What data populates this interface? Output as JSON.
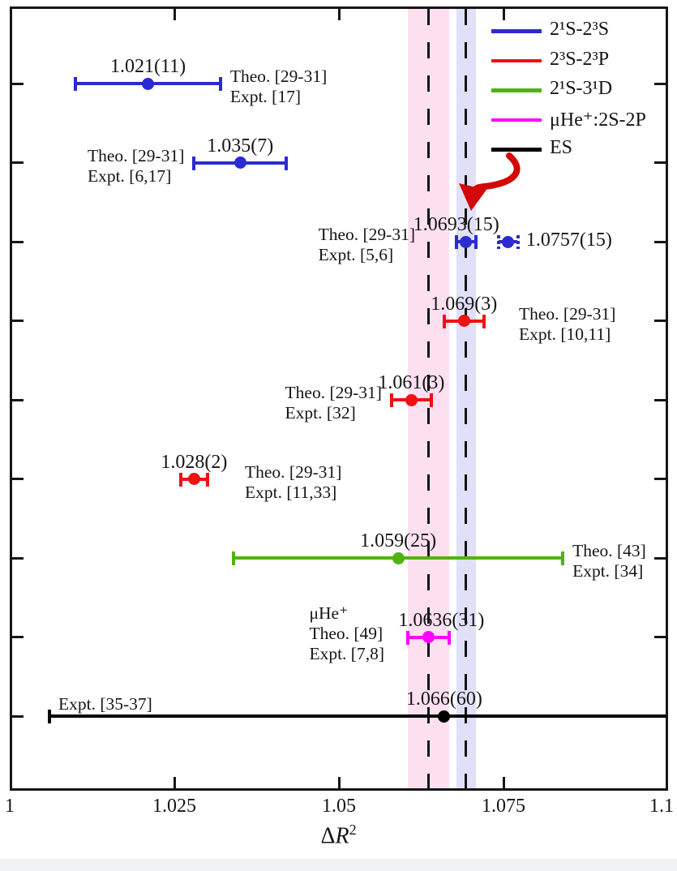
{
  "page": {
    "background": "#ffffff"
  },
  "chart_data": {
    "type": "scatter",
    "title": "",
    "xlabel": "ΔR²",
    "xlabel_parts": {
      "delta": "Δ",
      "symbol": "R",
      "sup": "2"
    },
    "ylabel": "",
    "xlim": [
      1,
      1.1
    ],
    "x_tick_values": [
      1,
      1.025,
      1.05,
      1.075,
      1.1
    ],
    "x_tick_labels": [
      "1",
      "1.025",
      "1.05",
      "1.075",
      "1.1"
    ],
    "y_tick_count_per_side": 9,
    "y_ticks_labeled": false,
    "grid": false,
    "legend_position": "top-right",
    "colors": {
      "blue": "#2b2bd2",
      "red": "#f01111",
      "green": "#4eb411",
      "magenta": "#ff00ff",
      "black": "#000000",
      "arrow": "#d40808",
      "band_pink": "#fce0f0",
      "band_lavender": "#e0e0f8",
      "dash": "#141414"
    },
    "legend": [
      {
        "series": "2¹S-2³S",
        "color_key": "blue"
      },
      {
        "series": "2³S-2³P",
        "color_key": "red"
      },
      {
        "series": "2¹S-3¹D",
        "color_key": "green"
      },
      {
        "series": "μHe⁺:2S-2P",
        "color_key": "magenta"
      },
      {
        "series": "ES",
        "color_key": "black"
      }
    ],
    "reference_lines": [
      {
        "x": 1.0636,
        "style": "dashed"
      },
      {
        "x": 1.0693,
        "style": "dashed"
      }
    ],
    "reference_bands": [
      {
        "x_min": 1.0605,
        "x_max": 1.0667,
        "color_key": "band_pink"
      },
      {
        "x_min": 1.0678,
        "x_max": 1.0708,
        "color_key": "band_lavender"
      }
    ],
    "points": [
      {
        "row": 0,
        "value": 1.021,
        "error": 0.011,
        "label": "1.021(11)",
        "series": "2¹S-2³S",
        "color_key": "blue",
        "marker": "solid",
        "refs": [
          "Theo. [29-31]",
          "Expt. [17]"
        ],
        "refs_side": "right"
      },
      {
        "row": 1,
        "value": 1.035,
        "error": 0.007,
        "label": "1.035(7)",
        "series": "2¹S-2³S",
        "color_key": "blue",
        "marker": "solid",
        "refs": [
          "Theo. [29-31]",
          "Expt. [6,17]"
        ],
        "refs_side": "left"
      },
      {
        "row": 2,
        "value": 1.0693,
        "error": 0.0015,
        "label": "1.0693(15)",
        "series": "2¹S-2³S",
        "color_key": "blue",
        "marker": "solid",
        "refs": [
          "Theo. [29-31]",
          "Expt. [5,6]"
        ],
        "refs_side": "left"
      },
      {
        "row": 2,
        "value": 1.0757,
        "error": 0.0015,
        "label": "1.0757(15)",
        "series": "2¹S-2³S",
        "color_key": "blue",
        "marker": "dotted",
        "refs": [],
        "refs_side": "none",
        "label_side": "right"
      },
      {
        "row": 3,
        "value": 1.069,
        "error": 0.003,
        "label": "1.069(3)",
        "series": "2³S-2³P",
        "color_key": "red",
        "marker": "solid",
        "refs": [
          "Theo. [29-31]",
          "Expt. [10,11]"
        ],
        "refs_side": "right"
      },
      {
        "row": 4,
        "value": 1.061,
        "error": 0.003,
        "label": "1.061(3)",
        "series": "2³S-2³P",
        "color_key": "red",
        "marker": "solid",
        "refs": [
          "Theo. [29-31]",
          "Expt. [32]"
        ],
        "refs_side": "left"
      },
      {
        "row": 5,
        "value": 1.028,
        "error": 0.002,
        "label": "1.028(2)",
        "series": "2³S-2³P",
        "color_key": "red",
        "marker": "solid",
        "refs": [
          "Theo. [29-31]",
          "Expt. [11,33]"
        ],
        "refs_side": "right"
      },
      {
        "row": 6,
        "value": 1.059,
        "error": 0.025,
        "label": "1.059(25)",
        "series": "2¹S-3¹D",
        "color_key": "green",
        "marker": "solid",
        "refs": [
          "Theo. [43]",
          "Expt. [34]"
        ],
        "refs_side": "right"
      },
      {
        "row": 7,
        "value": 1.0636,
        "error": 0.0031,
        "label": "1.0636(31)",
        "series": "μHe⁺:2S-2P",
        "color_key": "magenta",
        "marker": "solid",
        "refs": [
          "μHe⁺",
          "Theo. [49]",
          "Expt. [7,8]"
        ],
        "refs_side": "left"
      },
      {
        "row": 8,
        "value": 1.066,
        "error": 0.06,
        "label": "1.066(60)",
        "series": "ES",
        "color_key": "black",
        "marker": "solid",
        "refs": [
          "Expt. [35-37]"
        ],
        "refs_side": "above-left"
      }
    ],
    "annotation_arrow": {
      "points_to": "1.0693(15)",
      "color_key": "arrow",
      "shape": "curved-hand-drawn"
    }
  }
}
